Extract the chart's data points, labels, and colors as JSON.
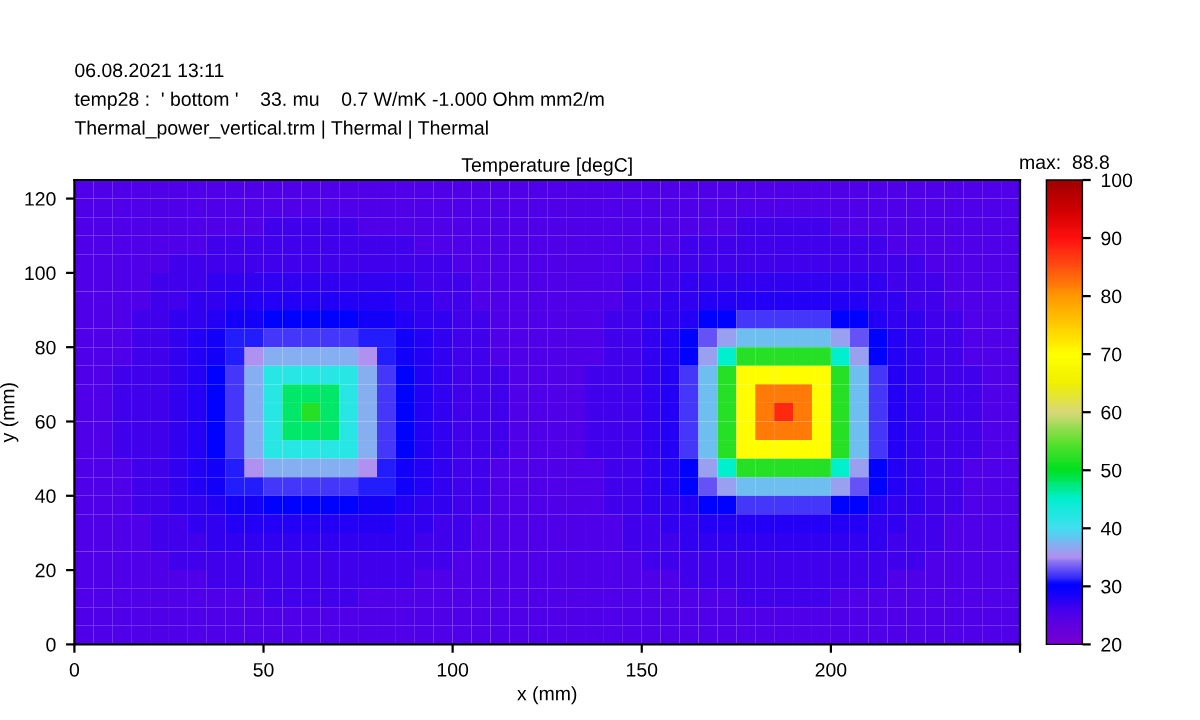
{
  "chart_data": {
    "type": "heatmap",
    "title": "Temperature [degC]",
    "xlabel": "x (mm)",
    "ylabel": "y (mm)",
    "clabel": "max:  88.8",
    "annotations": [
      "06.08.2021 13:11",
      "temp28 :  ' bottom '    33. mu    0.7 W/mK -1.000 Ohm mm2/m",
      "Thermal_power_vertical.trm | Thermal | Thermal"
    ],
    "xlim": [
      0,
      250
    ],
    "ylim": [
      0,
      125
    ],
    "xticks": [
      0,
      50,
      100,
      150,
      200,
      {
        "value": 250,
        "label": null
      }
    ],
    "yticks": [
      0,
      20,
      40,
      60,
      80,
      100,
      120
    ],
    "clim": [
      20,
      100
    ],
    "cticks": [
      20,
      30,
      40,
      50,
      60,
      70,
      80,
      90,
      100
    ],
    "colors": [
      "#7800d0",
      "#5000e8",
      "#0000ff",
      "#b090f0",
      "#40e0f0",
      "#00f0d0",
      "#00e020",
      "#60e030",
      "#d8d878",
      "#f0f000",
      "#ffff00",
      "#ffcc00",
      "#ff9900",
      "#ff5010",
      "#ff1010",
      "#d00000",
      "#a00000"
    ],
    "cells": [
      [
        25,
        25,
        25,
        25,
        25,
        25,
        25,
        25,
        25,
        25,
        25,
        25,
        25,
        25,
        25,
        25,
        25,
        25,
        25,
        25,
        25,
        25,
        25,
        25,
        25,
        25,
        25,
        25,
        25,
        25,
        25,
        25,
        25,
        25,
        25,
        25,
        25,
        25,
        25,
        25,
        25,
        25,
        25,
        25,
        25,
        25,
        25,
        25,
        25,
        25
      ],
      [
        25,
        25,
        25,
        25,
        25,
        25,
        25,
        25,
        25,
        25,
        25,
        25,
        25,
        25,
        25,
        25,
        25,
        25,
        25,
        25,
        25,
        25,
        25,
        25,
        25,
        25,
        25,
        25,
        25,
        25,
        25,
        25,
        25,
        25,
        25,
        25,
        25,
        25,
        25,
        25,
        25,
        25,
        25,
        25,
        25,
        25,
        25,
        25,
        25,
        25
      ],
      [
        25,
        25,
        25,
        25,
        25,
        25,
        25,
        25,
        25,
        25,
        26,
        26,
        26,
        26,
        26,
        25,
        25,
        25,
        25,
        25,
        25,
        25,
        25,
        25,
        25,
        25,
        25,
        25,
        25,
        25,
        25,
        25,
        25,
        25,
        25,
        26,
        26,
        26,
        26,
        26,
        25,
        25,
        25,
        25,
        25,
        25,
        25,
        25,
        25,
        25
      ],
      [
        25,
        25,
        25,
        25,
        25,
        25,
        25,
        26,
        26,
        26,
        26,
        26,
        26,
        26,
        26,
        26,
        26,
        26,
        25,
        25,
        25,
        25,
        25,
        25,
        25,
        25,
        25,
        25,
        25,
        25,
        25,
        25,
        26,
        26,
        26,
        26,
        26,
        26,
        26,
        26,
        26,
        26,
        26,
        25,
        25,
        25,
        25,
        25,
        25,
        25
      ],
      [
        25,
        25,
        25,
        25,
        25,
        26,
        26,
        26,
        26,
        26,
        26,
        26,
        26,
        26,
        26,
        26,
        26,
        26,
        26,
        26,
        25,
        25,
        25,
        25,
        25,
        25,
        25,
        25,
        25,
        25,
        26,
        26,
        26,
        26,
        26,
        26,
        26,
        26,
        26,
        26,
        26,
        26,
        26,
        26,
        26,
        25,
        25,
        25,
        25,
        25
      ],
      [
        25,
        25,
        25,
        25,
        26,
        26,
        26,
        27,
        27,
        27,
        27,
        27,
        27,
        27,
        27,
        27,
        27,
        27,
        26,
        26,
        26,
        25,
        25,
        25,
        25,
        25,
        25,
        25,
        25,
        26,
        26,
        26,
        27,
        27,
        27,
        27,
        27,
        27,
        27,
        27,
        27,
        27,
        27,
        26,
        26,
        26,
        25,
        25,
        25,
        25
      ],
      [
        25,
        25,
        25,
        25,
        26,
        26,
        27,
        27,
        28,
        28,
        28,
        28,
        28,
        28,
        28,
        28,
        28,
        27,
        27,
        26,
        26,
        25,
        25,
        25,
        25,
        25,
        25,
        25,
        25,
        26,
        26,
        27,
        27,
        28,
        28,
        28,
        28,
        28,
        28,
        28,
        28,
        28,
        27,
        27,
        26,
        26,
        25,
        25,
        25,
        25
      ],
      [
        25,
        25,
        25,
        26,
        26,
        27,
        27,
        28,
        29,
        29,
        30,
        30,
        30,
        30,
        30,
        29,
        29,
        28,
        27,
        27,
        26,
        26,
        25,
        25,
        25,
        25,
        25,
        25,
        26,
        26,
        27,
        27,
        28,
        30,
        30,
        32,
        32,
        32,
        32,
        32,
        30,
        30,
        28,
        27,
        27,
        26,
        26,
        25,
        25,
        25
      ],
      [
        25,
        25,
        25,
        26,
        26,
        27,
        28,
        29,
        31,
        31,
        32,
        32,
        32,
        32,
        32,
        31,
        31,
        29,
        28,
        27,
        26,
        26,
        25,
        25,
        25,
        25,
        25,
        25,
        26,
        26,
        27,
        28,
        30,
        33,
        36,
        38,
        38,
        38,
        38,
        38,
        36,
        33,
        30,
        28,
        27,
        26,
        26,
        25,
        25,
        25
      ],
      [
        25,
        25,
        25,
        26,
        26,
        27,
        28,
        29,
        31,
        35,
        37,
        37,
        37,
        37,
        37,
        35,
        31,
        29,
        28,
        27,
        26,
        26,
        25,
        25,
        25,
        25,
        25,
        25,
        26,
        26,
        27,
        28,
        30,
        36,
        45,
        52,
        52,
        52,
        52,
        52,
        45,
        36,
        30,
        28,
        27,
        26,
        26,
        25,
        25,
        25
      ],
      [
        25,
        25,
        26,
        26,
        26,
        27,
        28,
        30,
        32,
        37,
        42,
        42,
        42,
        42,
        42,
        37,
        32,
        30,
        28,
        27,
        26,
        26,
        26,
        25,
        25,
        25,
        25,
        26,
        26,
        26,
        27,
        28,
        32,
        38,
        52,
        70,
        70,
        70,
        70,
        70,
        52,
        38,
        32,
        28,
        27,
        26,
        26,
        26,
        25,
        25
      ],
      [
        25,
        25,
        26,
        26,
        26,
        27,
        28,
        30,
        32,
        37,
        42,
        48,
        48,
        48,
        42,
        37,
        32,
        30,
        28,
        27,
        26,
        26,
        26,
        25,
        25,
        25,
        25,
        26,
        26,
        26,
        27,
        28,
        32,
        38,
        52,
        70,
        82,
        82,
        82,
        70,
        52,
        38,
        32,
        28,
        27,
        26,
        26,
        26,
        25,
        25
      ],
      [
        25,
        25,
        26,
        26,
        26,
        27,
        28,
        30,
        32,
        37,
        42,
        48,
        52,
        48,
        42,
        37,
        32,
        30,
        28,
        27,
        26,
        26,
        26,
        25,
        25,
        25,
        25,
        26,
        26,
        26,
        27,
        28,
        32,
        38,
        52,
        70,
        82,
        88,
        82,
        70,
        52,
        38,
        32,
        28,
        27,
        26,
        26,
        26,
        25,
        25
      ],
      [
        25,
        25,
        26,
        26,
        26,
        27,
        28,
        30,
        32,
        37,
        42,
        48,
        48,
        48,
        42,
        37,
        32,
        30,
        28,
        27,
        26,
        26,
        26,
        25,
        25,
        25,
        25,
        26,
        26,
        26,
        27,
        28,
        32,
        38,
        52,
        70,
        82,
        82,
        82,
        70,
        52,
        38,
        32,
        28,
        27,
        26,
        26,
        26,
        25,
        25
      ],
      [
        25,
        25,
        26,
        26,
        26,
        27,
        28,
        30,
        32,
        37,
        42,
        42,
        42,
        42,
        42,
        37,
        32,
        30,
        28,
        27,
        26,
        26,
        26,
        25,
        25,
        25,
        25,
        26,
        26,
        26,
        27,
        28,
        32,
        38,
        52,
        70,
        70,
        70,
        70,
        70,
        52,
        38,
        32,
        28,
        27,
        26,
        26,
        26,
        25,
        25
      ],
      [
        25,
        25,
        25,
        26,
        26,
        27,
        28,
        29,
        31,
        35,
        37,
        37,
        37,
        37,
        37,
        35,
        31,
        29,
        28,
        27,
        26,
        26,
        25,
        25,
        25,
        25,
        25,
        25,
        26,
        26,
        27,
        28,
        30,
        36,
        45,
        52,
        52,
        52,
        52,
        52,
        45,
        36,
        30,
        28,
        27,
        26,
        26,
        25,
        25,
        25
      ],
      [
        25,
        25,
        25,
        26,
        26,
        27,
        28,
        29,
        31,
        31,
        32,
        32,
        32,
        32,
        32,
        31,
        31,
        29,
        28,
        27,
        26,
        26,
        25,
        25,
        25,
        25,
        25,
        25,
        26,
        26,
        27,
        28,
        30,
        33,
        36,
        38,
        38,
        38,
        38,
        38,
        36,
        33,
        30,
        28,
        27,
        26,
        26,
        25,
        25,
        25
      ],
      [
        25,
        25,
        25,
        26,
        26,
        27,
        27,
        28,
        29,
        29,
        30,
        30,
        30,
        30,
        30,
        29,
        29,
        28,
        27,
        27,
        26,
        26,
        25,
        25,
        25,
        25,
        25,
        25,
        26,
        26,
        27,
        27,
        28,
        30,
        30,
        32,
        32,
        32,
        32,
        32,
        30,
        30,
        28,
        27,
        27,
        26,
        26,
        25,
        25,
        25
      ],
      [
        25,
        25,
        25,
        25,
        26,
        26,
        27,
        27,
        28,
        28,
        28,
        28,
        28,
        28,
        28,
        28,
        28,
        27,
        27,
        26,
        26,
        25,
        25,
        25,
        25,
        25,
        25,
        25,
        25,
        26,
        26,
        27,
        27,
        28,
        28,
        28,
        28,
        28,
        28,
        28,
        28,
        28,
        27,
        27,
        26,
        26,
        25,
        25,
        25,
        25
      ],
      [
        25,
        25,
        25,
        25,
        26,
        26,
        26,
        27,
        27,
        27,
        27,
        27,
        27,
        27,
        27,
        27,
        27,
        27,
        26,
        26,
        26,
        25,
        25,
        25,
        25,
        25,
        25,
        25,
        25,
        26,
        26,
        26,
        27,
        27,
        27,
        27,
        27,
        27,
        27,
        27,
        27,
        27,
        27,
        26,
        26,
        26,
        25,
        25,
        25,
        25
      ],
      [
        25,
        25,
        25,
        25,
        25,
        26,
        26,
        26,
        26,
        26,
        26,
        26,
        26,
        26,
        26,
        26,
        26,
        26,
        26,
        26,
        25,
        25,
        25,
        25,
        25,
        25,
        25,
        25,
        25,
        25,
        26,
        26,
        26,
        26,
        26,
        26,
        26,
        26,
        26,
        26,
        26,
        26,
        26,
        26,
        26,
        25,
        25,
        25,
        25,
        25
      ],
      [
        25,
        25,
        25,
        25,
        25,
        25,
        25,
        26,
        26,
        26,
        26,
        26,
        26,
        26,
        26,
        26,
        26,
        26,
        25,
        25,
        25,
        25,
        25,
        25,
        25,
        25,
        25,
        25,
        25,
        25,
        25,
        25,
        26,
        26,
        26,
        26,
        26,
        26,
        26,
        26,
        26,
        26,
        26,
        25,
        25,
        25,
        25,
        25,
        25,
        25
      ],
      [
        25,
        25,
        25,
        25,
        25,
        25,
        25,
        25,
        25,
        25,
        26,
        26,
        26,
        26,
        26,
        25,
        25,
        25,
        25,
        25,
        25,
        25,
        25,
        25,
        25,
        25,
        25,
        25,
        25,
        25,
        25,
        25,
        25,
        25,
        25,
        26,
        26,
        26,
        26,
        26,
        25,
        25,
        25,
        25,
        25,
        25,
        25,
        25,
        25,
        25
      ],
      [
        25,
        25,
        25,
        25,
        25,
        25,
        25,
        25,
        25,
        25,
        25,
        25,
        25,
        25,
        25,
        25,
        25,
        25,
        25,
        25,
        25,
        25,
        25,
        25,
        25,
        25,
        25,
        25,
        25,
        25,
        25,
        25,
        25,
        25,
        25,
        25,
        25,
        25,
        25,
        25,
        25,
        25,
        25,
        25,
        25,
        25,
        25,
        25,
        25,
        25
      ],
      [
        25,
        25,
        25,
        25,
        25,
        25,
        25,
        25,
        25,
        25,
        25,
        25,
        25,
        25,
        25,
        25,
        25,
        25,
        25,
        25,
        25,
        25,
        25,
        25,
        25,
        25,
        25,
        25,
        25,
        25,
        25,
        25,
        25,
        25,
        25,
        25,
        25,
        25,
        25,
        25,
        25,
        25,
        25,
        25,
        25,
        25,
        25,
        25,
        25,
        25
      ]
    ]
  }
}
